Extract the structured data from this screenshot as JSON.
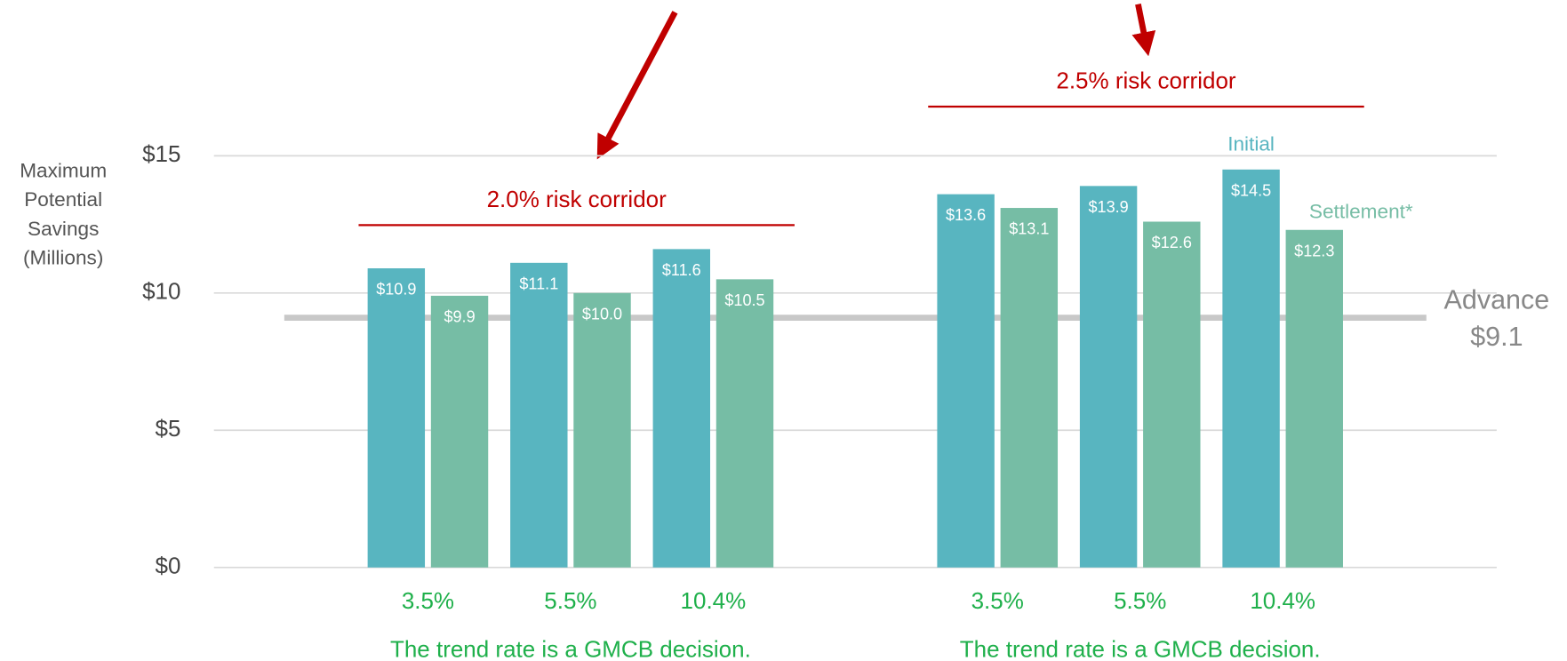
{
  "chart_data": {
    "type": "bar",
    "y_label_lines": [
      "Maximum",
      "Potential",
      "Savings",
      "(Millions)"
    ],
    "categories": [
      "3.5%",
      "5.5%",
      "10.4%",
      "3.5%",
      "5.5%",
      "10.4%"
    ],
    "groups": [
      {
        "label": "2.0% risk corridor",
        "note": "The trend rate is a GMCB decision."
      },
      {
        "label": "2.5% risk corridor",
        "note": "The trend rate is a GMCB decision."
      }
    ],
    "series": [
      {
        "name": "Initial",
        "color": "#58b5c0",
        "values": [
          10.9,
          11.1,
          11.6,
          13.6,
          13.9,
          14.5
        ],
        "value_labels": [
          "$10.9",
          "$11.1",
          "$11.6",
          "$13.6",
          "$13.9",
          "$14.5"
        ]
      },
      {
        "name": "Settlement*",
        "color": "#76bda5",
        "values": [
          9.9,
          10.0,
          10.5,
          13.1,
          12.6,
          12.3
        ],
        "value_labels": [
          "$9.9",
          "$10.0",
          "$10.5",
          "$13.1",
          "$12.6",
          "$12.3"
        ]
      }
    ],
    "reference_line": {
      "value": 9.1,
      "label": "Advance",
      "value_label": "$9.1"
    },
    "ylim": [
      0,
      15
    ],
    "yticks": [
      {
        "value": 0,
        "label": "$0"
      },
      {
        "value": 5,
        "label": "$5"
      },
      {
        "value": 10,
        "label": "$10"
      },
      {
        "value": 15,
        "label": "$15"
      }
    ],
    "grid": true
  }
}
